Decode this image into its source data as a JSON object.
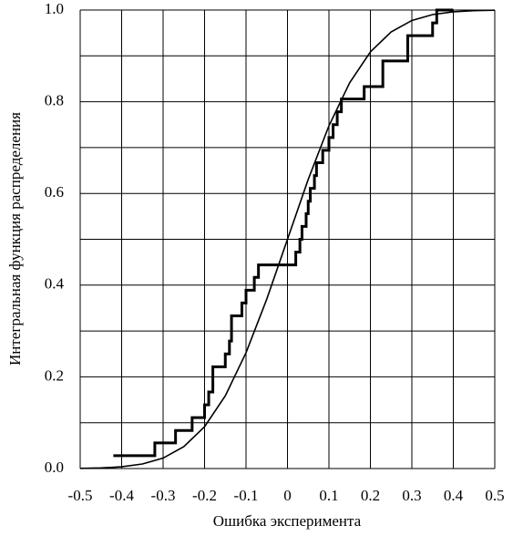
{
  "chart_data": {
    "type": "line",
    "xlabel": "Ошибка эксперимента",
    "ylabel": "Интегральная функция распределения",
    "xlim": [
      -0.5,
      0.5
    ],
    "xticks": [
      -0.5,
      -0.4,
      -0.3,
      -0.2,
      -0.1,
      0,
      0.1,
      0.2,
      0.3,
      0.4,
      0.5
    ],
    "ylim": [
      0,
      1
    ],
    "yticks": [
      {
        "value": 0,
        "label": "0.0"
      },
      0.2,
      0.4,
      0.6,
      0.8,
      {
        "value": 1,
        "label": "1.0"
      }
    ],
    "ygrid": [
      0.1,
      0.3,
      0.5,
      0.7,
      0.9
    ],
    "grid": true,
    "series": [
      {
        "shape": "step",
        "color": "#000000",
        "x": [
          -0.42,
          -0.32,
          -0.27,
          -0.23,
          -0.2,
          -0.19,
          -0.18,
          -0.15,
          -0.14,
          -0.135,
          -0.11,
          -0.1,
          -0.08,
          -0.07,
          0.02,
          0.03,
          0.035,
          0.045,
          0.05,
          0.055,
          0.065,
          0.07,
          0.085,
          0.1,
          0.11,
          0.12,
          0.13,
          0.185,
          0.23,
          0.29,
          0.35,
          0.36,
          0.4
        ],
        "values": [
          0.028,
          0.056,
          0.083,
          0.111,
          0.139,
          0.167,
          0.222,
          0.25,
          0.278,
          0.333,
          0.361,
          0.389,
          0.417,
          0.444,
          0.472,
          0.5,
          0.528,
          0.556,
          0.583,
          0.611,
          0.639,
          0.667,
          0.694,
          0.722,
          0.75,
          0.778,
          0.806,
          0.833,
          0.889,
          0.944,
          0.972,
          1.0,
          1.0
        ]
      },
      {
        "shape": "smooth",
        "color": "#000000",
        "x": [
          -0.5,
          -0.45,
          -0.4,
          -0.35,
          -0.3,
          -0.25,
          -0.2,
          -0.15,
          -0.1,
          -0.05,
          0,
          0.05,
          0.1,
          0.15,
          0.2,
          0.25,
          0.3,
          0.35,
          0.4,
          0.45,
          0.5
        ],
        "values": [
          0.0004,
          0.0013,
          0.0038,
          0.0099,
          0.0228,
          0.0478,
          0.0912,
          0.1587,
          0.2525,
          0.3694,
          0.5,
          0.6306,
          0.7475,
          0.8413,
          0.9088,
          0.9522,
          0.9772,
          0.9901,
          0.9962,
          0.9987,
          0.9996
        ]
      }
    ]
  }
}
